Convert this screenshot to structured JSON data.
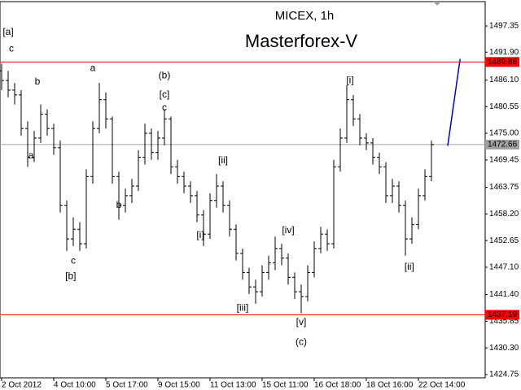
{
  "chart_data": {
    "type": "ohlc",
    "title": "MICEX, 1h",
    "subtitle": "Masterforex-V",
    "subtitle_color": "#ff0000",
    "bar_color": "#000000",
    "xlim": [
      -0.25,
      74.25
    ],
    "ylim": [
      1424.07,
      1502.43
    ],
    "xticks": [
      {
        "value": 0,
        "label": "2 Oct 2012"
      },
      {
        "value": 8,
        "label": "4 Oct 10:00"
      },
      {
        "value": 16,
        "label": "5 Oct 17:00"
      },
      {
        "value": 24,
        "label": "9 Oct 15:00"
      },
      {
        "value": 32,
        "label": "11 Oct 13:00"
      },
      {
        "value": 40,
        "label": "15 Oct 11:00"
      },
      {
        "value": 48,
        "label": "16 Oct 18:00"
      },
      {
        "value": 56,
        "label": "18 Oct 16:00"
      },
      {
        "value": 64,
        "label": "22 Oct 14:00"
      }
    ],
    "yticks": [
      1497.35,
      {
        "value": 1491.9,
        "label": "1491.90"
      },
      {
        "value": 1486.1,
        "label": "1486.10"
      },
      1480.55,
      {
        "value": 1475,
        "label": "1475.00"
      },
      1469.45,
      1463.75,
      {
        "value": 1458.2,
        "label": "1458.20"
      },
      1452.65,
      {
        "value": 1447.1,
        "label": "1447.10"
      },
      {
        "value": 1441.4,
        "label": "1441.40"
      },
      1435.85,
      {
        "value": 1430.3,
        "label": "1430.30"
      },
      1424.75
    ],
    "open": [
      1488,
      1486,
      1484,
      1483,
      1476,
      1470,
      1474,
      1479,
      1476,
      1472,
      1460,
      1453,
      1455,
      1452,
      1466,
      1476,
      1482,
      1478,
      1466,
      1460,
      1462,
      1464,
      1470,
      1475,
      1471,
      1474,
      1478,
      1468,
      1466,
      1464,
      1462,
      1458,
      1454,
      1461,
      1464,
      1460,
      1455,
      1450,
      1446,
      1443,
      1442,
      1446,
      1448,
      1451,
      1449,
      1445,
      1442,
      1441,
      1446,
      1451,
      1454,
      1452,
      1468,
      1474,
      1482,
      1478,
      1474,
      1473,
      1470,
      1468,
      1462,
      1464,
      1460,
      1453,
      1456,
      1462,
      1466
    ],
    "high": [
      1489.5,
      1488,
      1485.5,
      1484,
      1477.5,
      1475.5,
      1481,
      1480,
      1477,
      1473.5,
      1461,
      1457.5,
      1456.5,
      1467.5,
      1477.5,
      1485.5,
      1483.5,
      1478.5,
      1467,
      1463.5,
      1465.5,
      1471.5,
      1477,
      1476,
      1475.5,
      1480,
      1478.5,
      1469.5,
      1467,
      1465,
      1463,
      1459,
      1462.5,
      1466.5,
      1465,
      1461,
      1456,
      1451,
      1447,
      1444.5,
      1447.5,
      1449.5,
      1453.5,
      1452,
      1450,
      1446,
      1443.5,
      1447.5,
      1452.5,
      1455.5,
      1455,
      1469.5,
      1476,
      1485,
      1483,
      1479,
      1475,
      1474,
      1471,
      1469,
      1465.5,
      1465,
      1461,
      1457.5,
      1463.5,
      1467.5,
      1473.5
    ],
    "low": [
      1484,
      1482.5,
      1481,
      1474.5,
      1468,
      1469,
      1473,
      1474.5,
      1470.5,
      1458.5,
      1450.5,
      1451.5,
      1450.5,
      1451,
      1464.5,
      1475,
      1476,
      1464.5,
      1457,
      1458.5,
      1460.5,
      1463,
      1468.5,
      1469.5,
      1469.5,
      1472.5,
      1466.5,
      1464.5,
      1462.5,
      1460.5,
      1456.5,
      1451.5,
      1453,
      1459.5,
      1458.5,
      1453.5,
      1448.5,
      1444.5,
      1441.5,
      1439.5,
      1441,
      1444.5,
      1446.5,
      1447.5,
      1443.5,
      1440.5,
      1437.5,
      1440,
      1445,
      1450,
      1450.5,
      1451,
      1467,
      1473,
      1476.5,
      1472.5,
      1471.5,
      1468.5,
      1466.5,
      1460.5,
      1460.5,
      1458.5,
      1449.5,
      1452,
      1455,
      1461,
      1465
    ],
    "close": [
      1486,
      1484,
      1483,
      1476,
      1470,
      1474,
      1479,
      1476,
      1472,
      1460,
      1453,
      1455,
      1452,
      1466,
      1476,
      1482,
      1478,
      1466,
      1460,
      1462,
      1464,
      1470,
      1475,
      1471,
      1474,
      1478,
      1468,
      1466,
      1464,
      1462,
      1458,
      1454,
      1461,
      1464,
      1460,
      1455,
      1450,
      1446,
      1443,
      1442,
      1446,
      1448,
      1451,
      1449,
      1445,
      1442,
      1441,
      1446,
      1451,
      1454,
      1452,
      1468,
      1474,
      1482,
      1478,
      1474,
      1473,
      1470,
      1468,
      1462,
      1464,
      1460,
      1453,
      1456,
      1462,
      1466,
      1472.66
    ],
    "levels": [
      {
        "value": 1489.86,
        "color": "#ff0000"
      },
      {
        "value": 1472.66,
        "color": "#a0a0a0"
      },
      {
        "value": 1437.19,
        "color": "#ff0000"
      }
    ],
    "forecast": {
      "x": [
        68.5,
        70.4
      ],
      "values": [
        1472.4,
        1490.5
      ],
      "color": "#0000cc"
    },
    "annotations": [
      {
        "text": "[a]",
        "x": 1,
        "y": 1496.0
      },
      {
        "text": "c",
        "x": 1.5,
        "y": 1492.6
      },
      {
        "text": "b",
        "x": 5.5,
        "y": 1485.7
      },
      {
        "text": "a",
        "x": 4.5,
        "y": 1470.3
      },
      {
        "text": "c",
        "x": 11,
        "y": 1448.4
      },
      {
        "text": "[b]",
        "x": 10.6,
        "y": 1445.2
      },
      {
        "text": "a",
        "x": 14,
        "y": 1488.5
      },
      {
        "text": "b",
        "x": 18,
        "y": 1460.0
      },
      {
        "text": "(b)",
        "x": 25,
        "y": 1487.0
      },
      {
        "text": "[c]",
        "x": 25,
        "y": 1483.0
      },
      {
        "text": "c",
        "x": 25,
        "y": 1480.3
      },
      {
        "text": "[ii]",
        "x": 34,
        "y": 1469.3
      },
      {
        "text": "[i]",
        "x": 30.5,
        "y": 1453.7
      },
      {
        "text": "[iii]",
        "x": 37,
        "y": 1438.6
      },
      {
        "text": "[iv]",
        "x": 44,
        "y": 1454.7
      },
      {
        "text": "[v]",
        "x": 46,
        "y": 1435.6
      },
      {
        "text": "(c)",
        "x": 46,
        "y": 1431.5
      },
      {
        "text": "[i]",
        "x": 53.5,
        "y": 1486.0
      },
      {
        "text": "[ii]",
        "x": 62.6,
        "y": 1447.1
      }
    ]
  }
}
